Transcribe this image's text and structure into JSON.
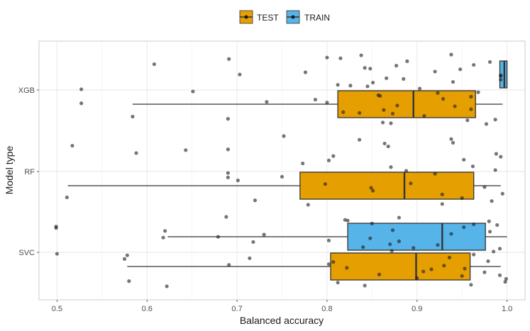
{
  "chart_data": {
    "type": "boxplot",
    "orientation": "horizontal",
    "title": "",
    "xlabel": "Balanced accuracy",
    "ylabel": "Model type",
    "xlim": [
      0.48,
      1.02
    ],
    "x_ticks": [
      0.5,
      0.6,
      0.7,
      0.8,
      0.9,
      1.0
    ],
    "x_tick_labels": [
      "0.5",
      "0.6",
      "0.7",
      "0.8",
      "0.9",
      "1.0"
    ],
    "categories": [
      "XGB",
      "RF",
      "SVC"
    ],
    "legend": {
      "position": "top",
      "items": [
        {
          "key": "test",
          "label": "TEST",
          "color": "#E69F00"
        },
        {
          "key": "train",
          "label": "TRAIN",
          "color": "#56B4E9"
        }
      ]
    },
    "boxes": [
      {
        "category": "XGB",
        "group": "test",
        "whisker_low": 0.584,
        "q1": 0.812,
        "median": 0.896,
        "q3": 0.965,
        "whisker_high": 0.995
      },
      {
        "category": "XGB",
        "group": "train",
        "whisker_low": 0.992,
        "q1": 0.992,
        "median": 0.997,
        "q3": 1.0,
        "whisker_high": 1.0
      },
      {
        "category": "RF",
        "group": "test",
        "whisker_low": 0.512,
        "q1": 0.77,
        "median": 0.886,
        "q3": 0.963,
        "whisker_high": 0.993
      },
      {
        "category": "SVC",
        "group": "test",
        "whisker_low": 0.578,
        "q1": 0.804,
        "median": 0.899,
        "q3": 0.959,
        "whisker_high": 0.993
      },
      {
        "category": "SVC",
        "group": "train",
        "whisker_low": 0.623,
        "q1": 0.823,
        "median": 0.928,
        "q3": 0.976,
        "whisker_high": 1.0
      }
    ],
    "points": {
      "XGB": [
        0.608,
        0.651,
        0.69,
        0.703,
        0.733,
        0.8,
        0.812,
        0.818,
        0.842,
        0.857,
        0.862,
        0.866,
        0.878,
        0.889,
        0.903,
        0.908,
        0.92,
        0.929,
        0.938,
        0.94,
        0.96,
        0.963,
        0.968,
        0.987,
        0.993,
        0.8,
        0.815,
        0.826,
        0.836,
        0.848,
        0.859,
        0.871,
        0.885,
        0.942,
        0.981,
        0.527,
        0.584,
        0.776,
        0.787,
        0.838,
        0.851,
        0.863,
        0.877,
        0.923,
        0.956,
        0.993,
        0.527,
        0.691,
        0.845,
        0.873,
        0.948,
        0.96,
        0.977,
        0.993
      ],
      "RF": [
        0.517,
        0.69,
        0.72,
        0.807,
        0.893,
        0.938,
        0.962,
        0.995,
        0.69,
        0.75,
        0.928,
        0.952,
        0.975,
        0.94,
        0.987,
        0.511,
        0.588,
        0.701,
        0.752,
        0.773,
        0.851,
        0.868,
        0.92,
        0.983,
        0.993,
        0.798,
        0.836,
        0.871,
        0.928,
        0.643,
        0.69,
        0.779,
        0.802,
        0.849,
        0.864,
        0.888,
        0.95,
        0.988
      ],
      "SVC": [
        0.499,
        0.5,
        0.58,
        0.679,
        0.802,
        0.82,
        0.84,
        0.858,
        0.873,
        0.936,
        0.96,
        0.802,
        0.822,
        0.85,
        0.872,
        0.9,
        0.938,
        0.979,
        0.688,
        0.87,
        0.907,
        0.952,
        0.963,
        0.998,
        0.618,
        0.691,
        0.823,
        0.896,
        0.992,
        0.62,
        0.714,
        0.842,
        0.88,
        0.953,
        0.963,
        0.985,
        0.999,
        0.73,
        0.807,
        0.88,
        0.923,
        0.975,
        0.499,
        0.578,
        0.812,
        0.848,
        0.93,
        0.98,
        0.992,
        0.95,
        0.981,
        0.575,
        0.622,
        0.718,
        0.916,
        0.989
      ]
    }
  }
}
